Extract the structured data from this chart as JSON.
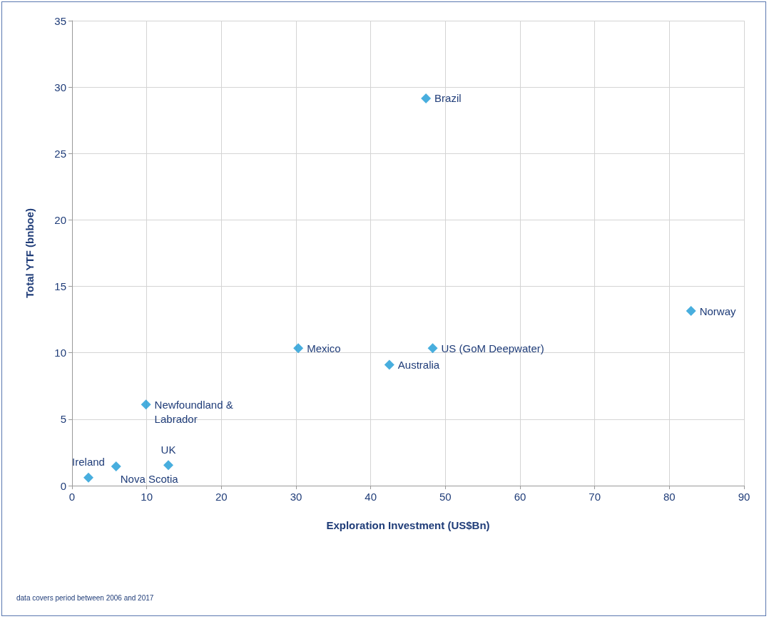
{
  "chart_data": {
    "type": "scatter",
    "xlabel": "Exploration Investment (US$Bn)",
    "ylabel": "Total YTF (bnboe)",
    "x": [
      2.2,
      5.9,
      12.9,
      9.9,
      30.3,
      42.5,
      48.3,
      47.4,
      82.9
    ],
    "series": [
      {
        "color": "#1a9ad6",
        "values": [
          0.6,
          1.45,
          1.55,
          6.1,
          10.35,
          9.1,
          10.35,
          29.15,
          13.15
        ]
      }
    ],
    "xlim": [
      0,
      90
    ],
    "xticks": [
      0,
      10,
      20,
      30,
      40,
      50,
      60,
      70,
      80,
      90
    ],
    "ylim": [
      0,
      35
    ],
    "yticks": [
      0,
      5,
      10,
      15,
      20,
      25,
      30,
      35
    ],
    "grid": true,
    "marker": "diamond",
    "annotations": [
      {
        "text": "Ireland",
        "x": 2.2,
        "y": 0.6
      },
      {
        "text": "Nova Scotia",
        "x": 5.9,
        "y": 1.45
      },
      {
        "text": "UK",
        "x": 12.9,
        "y": 1.55
      },
      {
        "text": "Newfoundland & Labrador",
        "x": 9.9,
        "y": 6.1
      },
      {
        "text": "Mexico",
        "x": 30.3,
        "y": 10.35
      },
      {
        "text": "Australia",
        "x": 42.5,
        "y": 9.1
      },
      {
        "text": "US (GoM Deepwater)",
        "x": 48.3,
        "y": 10.35
      },
      {
        "text": "Brazil",
        "x": 47.4,
        "y": 29.15
      },
      {
        "text": "Norway",
        "x": 82.9,
        "y": 13.15
      },
      "data covers period between 2006 and 2017"
    ]
  }
}
